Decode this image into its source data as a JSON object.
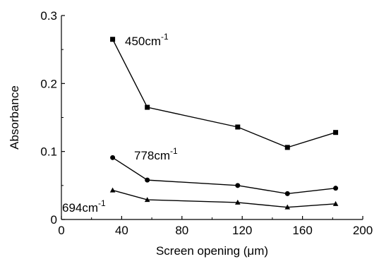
{
  "chart_data": {
    "type": "line",
    "title": "",
    "xlabel": "Screen opening (μm)",
    "ylabel": "Absorbance",
    "xlim": [
      0,
      200
    ],
    "ylim": [
      0,
      0.3
    ],
    "xticks": [
      0,
      40,
      80,
      120,
      160,
      200
    ],
    "xtick_labels": [
      "0",
      "40",
      "80",
      "120",
      "160",
      "200"
    ],
    "yticks": [
      0,
      0.1,
      0.2,
      0.3
    ],
    "ytick_labels": [
      "0",
      "0.1",
      "0.2",
      "0.3"
    ],
    "grid": false,
    "legend": "none",
    "series": [
      {
        "name": "450cm-1",
        "label_base": "450cm",
        "label_sup": "-1",
        "marker": "square",
        "x": [
          34,
          57,
          117,
          150,
          182
        ],
        "y": [
          0.265,
          0.165,
          0.136,
          0.106,
          0.128
        ]
      },
      {
        "name": "778cm-1",
        "label_base": "778cm",
        "label_sup": "-1",
        "marker": "circle",
        "x": [
          34,
          57,
          117,
          150,
          182
        ],
        "y": [
          0.091,
          0.058,
          0.05,
          0.038,
          0.046
        ]
      },
      {
        "name": "694cm-1",
        "label_base": "694cm",
        "label_sup": "-1",
        "marker": "triangle",
        "x": [
          34,
          57,
          117,
          150,
          182
        ],
        "y": [
          0.043,
          0.029,
          0.025,
          0.018,
          0.023
        ]
      }
    ]
  }
}
